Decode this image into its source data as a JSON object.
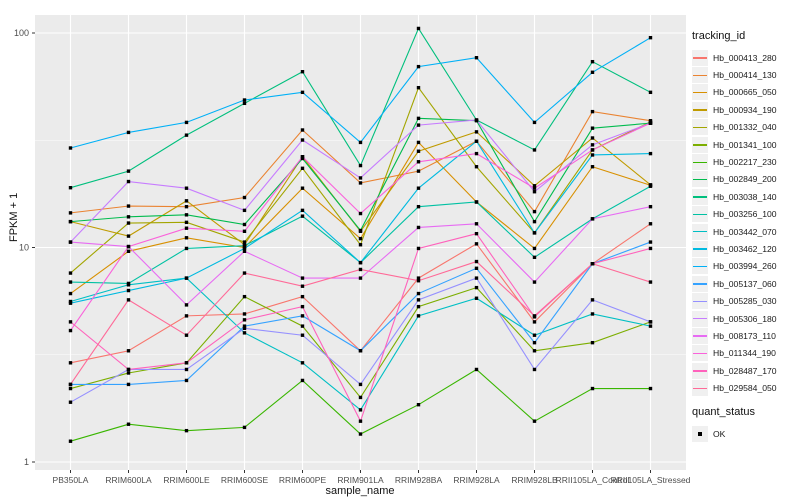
{
  "chart_data": {
    "type": "line",
    "title": "",
    "xlabel": "sample_name",
    "ylabel": "FPKM + 1",
    "y_scale": "log10",
    "y_tick_labels": [
      "1",
      "10",
      "100"
    ],
    "y_ticks": [
      1,
      10,
      100
    ],
    "y_minor_ticks": [
      3.162,
      31.62
    ],
    "ylim": [
      0.92,
      121
    ],
    "grid": true,
    "panel_background": "#EBEBEB",
    "gridline_color": "#FFFFFF",
    "point_color": "#000000",
    "point_shape": "square",
    "legend_position": "right",
    "legend_title": "tracking_id",
    "marker_legend_title": "quant_status",
    "marker_legend_items": [
      {
        "label": "OK",
        "shape": "black-square"
      }
    ],
    "x_categories": [
      "PB350LA",
      "RRIM600LA",
      "RRIM600LE",
      "RRIM600SE",
      "RRIM600PE",
      "RRIM901LA",
      "RRIM928BA",
      "RRIM928LA",
      "RRIM928LB",
      "RRII105LA_Control",
      "RRII105LA_Stressed"
    ],
    "series": [
      {
        "name": "Hb_000413_280",
        "color": "#F8766D",
        "values": [
          2.9,
          3.3,
          4.8,
          4.9,
          5.9,
          3.3,
          7.2,
          10.4,
          4.5,
          8.4,
          12.9
        ]
      },
      {
        "name": "Hb_000414_130",
        "color": "#EA8331",
        "values": [
          14.5,
          15.6,
          15.5,
          17.1,
          35.3,
          20.0,
          22.7,
          31.3,
          14.7,
          43.0,
          39.0
        ]
      },
      {
        "name": "Hb_000665_050",
        "color": "#D89000",
        "values": [
          6.1,
          9.6,
          11.1,
          10.0,
          18.9,
          11.0,
          30.9,
          16.3,
          9.9,
          23.8,
          19.5
        ]
      },
      {
        "name": "Hb_000934_190",
        "color": "#C09B00",
        "values": [
          13.2,
          11.3,
          16.5,
          10.3,
          26.5,
          11.9,
          28.1,
          34.6,
          19.4,
          32.4,
          19.6
        ]
      },
      {
        "name": "Hb_001332_040",
        "color": "#A3A500",
        "values": [
          7.6,
          13.0,
          13.1,
          10.6,
          23.4,
          10.3,
          55.6,
          23.8,
          11.7,
          28.5,
          38.5
        ]
      },
      {
        "name": "Hb_001341_100",
        "color": "#7CAE00",
        "values": [
          2.2,
          2.6,
          2.9,
          5.9,
          4.3,
          2.0,
          5.3,
          6.5,
          3.3,
          3.6,
          4.5
        ]
      },
      {
        "name": "Hb_002217_230",
        "color": "#39B600",
        "values": [
          1.25,
          1.5,
          1.4,
          1.45,
          2.4,
          1.35,
          1.85,
          2.7,
          1.55,
          2.2,
          2.2
        ]
      },
      {
        "name": "Hb_002849_200",
        "color": "#00BB4E",
        "values": [
          13.2,
          13.9,
          14.2,
          12.8,
          26.0,
          12.0,
          40.0,
          39.0,
          13.2,
          36.0,
          38.0
        ]
      },
      {
        "name": "Hb_003038_140",
        "color": "#00BF7D",
        "values": [
          19.0,
          22.7,
          33.4,
          47.0,
          66.0,
          24.1,
          105.0,
          39.3,
          28.5,
          73.5,
          52.9
        ]
      },
      {
        "name": "Hb_003256_100",
        "color": "#00C1A3",
        "values": [
          6.9,
          6.8,
          9.9,
          10.2,
          14.0,
          8.5,
          15.5,
          16.3,
          9.0,
          13.6,
          19.3
        ]
      },
      {
        "name": "Hb_003442_070",
        "color": "#00BFC4",
        "values": [
          5.6,
          6.7,
          7.2,
          4.0,
          2.9,
          1.75,
          4.8,
          5.8,
          3.9,
          4.9,
          4.3
        ]
      },
      {
        "name": "Hb_003462_120",
        "color": "#00BAE0",
        "values": [
          5.5,
          6.3,
          7.2,
          9.9,
          14.9,
          8.5,
          18.9,
          31.3,
          11.7,
          27.0,
          27.4
        ]
      },
      {
        "name": "Hb_003994_260",
        "color": "#00B0F6",
        "values": [
          29.1,
          34.4,
          38.3,
          48.7,
          52.9,
          30.9,
          69.7,
          76.7,
          38.3,
          65.6,
          95.1
        ]
      },
      {
        "name": "Hb_005137_060",
        "color": "#35A2FF",
        "values": [
          2.3,
          2.3,
          2.4,
          4.3,
          4.8,
          3.3,
          6.1,
          8.0,
          3.6,
          8.4,
          10.6
        ]
      },
      {
        "name": "Hb_005285_030",
        "color": "#9590FF",
        "values": [
          1.9,
          2.7,
          2.7,
          4.2,
          3.9,
          2.3,
          5.7,
          7.2,
          2.7,
          5.7,
          4.5
        ]
      },
      {
        "name": "Hb_005306_180",
        "color": "#C77CFF",
        "values": [
          10.6,
          20.3,
          18.9,
          14.9,
          31.7,
          21.1,
          37.2,
          39.3,
          18.2,
          30.1,
          38.0
        ]
      },
      {
        "name": "Hb_008173_110",
        "color": "#E76BF3",
        "values": [
          10.6,
          10.1,
          5.4,
          9.6,
          7.2,
          7.2,
          12.4,
          12.9,
          6.9,
          13.6,
          15.5
        ]
      },
      {
        "name": "Hb_011344_190",
        "color": "#FA62DB",
        "values": [
          4.1,
          10.1,
          12.3,
          11.9,
          26.5,
          14.4,
          25.1,
          27.4,
          18.9,
          28.5,
          38.0
        ]
      },
      {
        "name": "Hb_028487_170",
        "color": "#FF62BC",
        "values": [
          4.5,
          2.7,
          2.9,
          4.6,
          5.3,
          1.55,
          9.9,
          11.6,
          4.75,
          8.4,
          9.9
        ]
      },
      {
        "name": "Hb_029584_050",
        "color": "#FF6A98",
        "values": [
          2.3,
          5.7,
          3.9,
          7.6,
          6.6,
          7.9,
          7.0,
          8.6,
          4.8,
          8.4,
          6.9
        ]
      }
    ]
  }
}
